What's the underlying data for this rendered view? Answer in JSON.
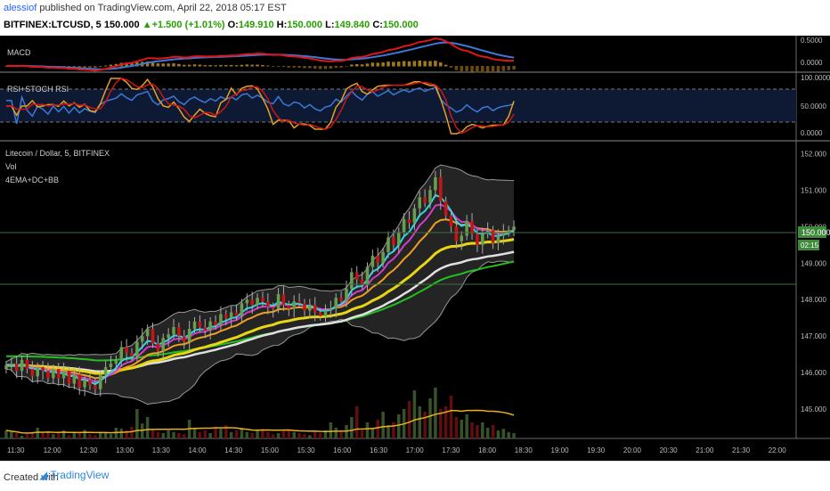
{
  "header": {
    "author": "alessiof",
    "published": " published on TradingView.com, April 22, 2018 05:17 EST",
    "symbol": "BITFINEX:LTCUSD, 5",
    "price": "150.000",
    "change": "+1.500 (+1.01%)",
    "o_label": "O:",
    "o_val": "149.910",
    "h_label": "H:",
    "h_val": "150.000",
    "l_label": "L:",
    "l_val": "149.840",
    "c_label": "C:",
    "c_val": "150.000"
  },
  "panes": {
    "macd": {
      "label": "MACD",
      "ticks": [
        "0.5000",
        "0.0000"
      ]
    },
    "rsi": {
      "label": "RSI+STOCH RSI",
      "ticks": [
        "100.0000",
        "50.0000",
        "0.0000"
      ]
    },
    "main": {
      "title": "Litecoin / Dollar, 5, BITFINEX",
      "vol_label": "Vol",
      "indicator_label": "4EMA+DC+BB",
      "price_badge": "150.000",
      "countdown_badge": "02:15"
    }
  },
  "footer": {
    "created": "Created with",
    "brand": "TradingView"
  },
  "colors": {
    "bull": "#6a9e4f",
    "bear": "#c81414",
    "background": "#000000"
  },
  "chart_data": {
    "type": "candlestick",
    "title": "Litecoin / Dollar, 5, BITFINEX",
    "x_ticks": [
      "11:30",
      "12:00",
      "12:30",
      "13:00",
      "13:30",
      "14:00",
      "14:30",
      "15:00",
      "15:30",
      "16:00",
      "16:30",
      "17:00",
      "17:30",
      "18:00",
      "18:30",
      "19:00",
      "19:30",
      "20:00",
      "20:30",
      "21:00",
      "21:30",
      "22:00"
    ],
    "y_ticks": [
      145,
      146,
      147,
      148,
      149,
      150,
      151,
      152
    ],
    "ylim": [
      144.2,
      152.3
    ],
    "close": [
      146.2,
      146.25,
      146.05,
      146.35,
      146.1,
      145.9,
      146.15,
      146.05,
      145.85,
      146.1,
      145.85,
      146.05,
      145.7,
      145.95,
      145.6,
      145.8,
      145.65,
      145.55,
      145.95,
      146.15,
      146.25,
      146.35,
      146.7,
      146.55,
      146.45,
      146.85,
      147.0,
      147.2,
      146.8,
      146.6,
      146.95,
      147.05,
      147.25,
      147.0,
      146.85,
      147.2,
      147.4,
      147.25,
      147.15,
      147.4,
      147.3,
      147.6,
      147.5,
      147.65,
      147.55,
      147.9,
      148.0,
      147.85,
      148.05,
      147.95,
      147.8,
      147.75,
      148.15,
      147.85,
      147.75,
      147.95,
      147.9,
      147.7,
      147.85,
      147.65,
      147.55,
      147.7,
      147.75,
      148.05,
      147.95,
      148.3,
      148.75,
      148.55,
      148.4,
      148.9,
      149.2,
      149.0,
      149.3,
      149.7,
      149.5,
      149.85,
      150.2,
      150.1,
      150.5,
      150.8,
      150.65,
      151.0,
      151.35,
      150.7,
      150.3,
      150.0,
      149.6,
      149.75,
      150.15,
      149.8,
      149.5,
      149.8,
      149.9,
      149.55,
      149.75,
      149.85,
      149.9,
      150.0
    ],
    "volume": [
      0.15,
      0.12,
      0.1,
      0.05,
      0.08,
      0.12,
      0.2,
      0.1,
      0.14,
      0.08,
      0.1,
      0.15,
      0.06,
      0.12,
      0.1,
      0.16,
      0.08,
      0.06,
      0.12,
      0.1,
      0.08,
      0.2,
      0.18,
      0.15,
      0.22,
      0.55,
      0.28,
      0.4,
      0.18,
      0.12,
      0.1,
      0.15,
      0.12,
      0.1,
      0.08,
      0.35,
      0.2,
      0.12,
      0.15,
      0.1,
      0.22,
      0.18,
      0.25,
      0.12,
      0.15,
      0.2,
      0.12,
      0.1,
      0.15,
      0.18,
      0.12,
      0.08,
      0.1,
      0.14,
      0.15,
      0.12,
      0.1,
      0.08,
      0.06,
      0.12,
      0.1,
      0.15,
      0.3,
      0.2,
      0.12,
      0.25,
      0.4,
      0.6,
      0.15,
      0.3,
      0.2,
      0.35,
      0.5,
      0.25,
      0.3,
      0.45,
      0.55,
      0.7,
      0.9,
      0.6,
      0.5,
      0.75,
      0.95,
      0.55,
      0.6,
      0.8,
      0.4,
      0.35,
      0.45,
      0.3,
      0.25,
      0.3,
      0.2,
      0.25,
      0.15,
      0.18,
      0.12,
      0.1
    ],
    "macd_ticks": [
      0.5,
      0.0
    ],
    "rsi_ticks": [
      100,
      50,
      0
    ]
  }
}
